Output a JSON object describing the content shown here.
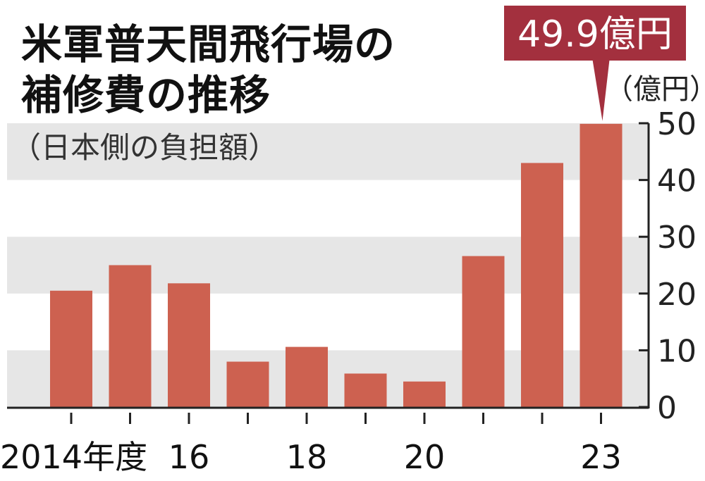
{
  "title_lines": [
    "米軍普天間飛行場の",
    "補修費の推移"
  ],
  "subtitle": "（日本側の負担額）",
  "unit": "（億円）",
  "callout": "49.9億円",
  "colors": {
    "bar": "#cd6150",
    "band": "#e6e6e6",
    "callout_bg": "#a3303e",
    "callout_text": "#ffffff",
    "axis": "#222222"
  },
  "chart_data": {
    "type": "bar",
    "title": "米軍普天間飛行場の補修費の推移",
    "subtitle": "（日本側の負担額）",
    "ylabel": "（億円）",
    "categories": [
      "2014",
      "2015",
      "2016",
      "2017",
      "2018",
      "2019",
      "2020",
      "2021",
      "2022",
      "2023"
    ],
    "values": [
      20.5,
      25,
      21.8,
      8,
      10.6,
      5.9,
      4.5,
      26.6,
      43,
      49.9
    ],
    "ylim": [
      0,
      50
    ],
    "yticks": [
      0,
      10,
      20,
      30,
      40,
      50
    ],
    "xtick_labels": [
      "2014年度",
      "",
      "16",
      "",
      "18",
      "",
      "20",
      "",
      "",
      "23"
    ],
    "annotation": {
      "category": "2023",
      "text": "49.9億円"
    },
    "grid": "alternating horizontal bands",
    "y_axis_side": "right"
  }
}
